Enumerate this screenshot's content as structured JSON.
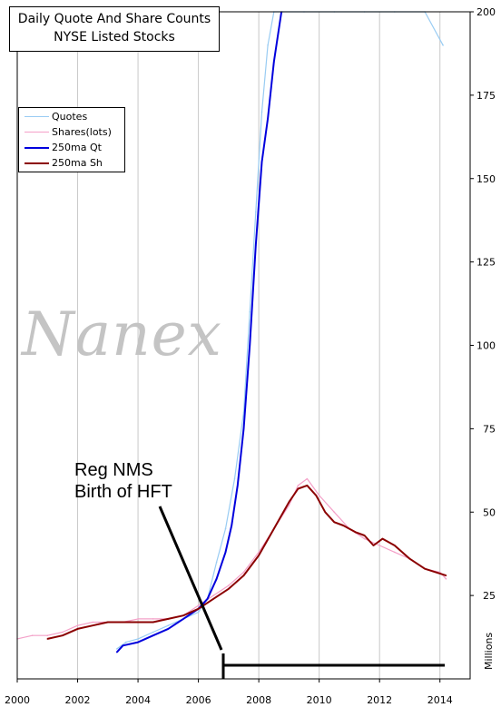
{
  "chart_data": {
    "type": "line",
    "title": "Daily Quote And Share Counts",
    "subtitle": "NYSE Listed Stocks",
    "ylabel": "Millions",
    "xlabel": "",
    "xlim": [
      2000,
      2015.0
    ],
    "ylim": [
      0,
      200
    ],
    "x_ticks": [
      "2000",
      "2002",
      "2004",
      "2006",
      "2008",
      "2010",
      "2012",
      "2014"
    ],
    "y_ticks": [
      "25",
      "50",
      "75",
      "100",
      "125",
      "150",
      "175",
      "200"
    ],
    "grid": "vertical",
    "legend_position": "top-left",
    "series": [
      {
        "name": "Quotes",
        "color": "#99ccf3",
        "x": [
          2003.3,
          2003.6,
          2004.0,
          2004.5,
          2005.0,
          2005.5,
          2006.0,
          2006.3,
          2006.6,
          2006.9,
          2007.2,
          2007.5,
          2007.7,
          2007.9,
          2008.1,
          2008.3,
          2008.5,
          2008.8,
          2009.5,
          2010.5,
          2011.5,
          2012.5,
          2013.5,
          2014.1
        ],
        "values": [
          9,
          11,
          12,
          14,
          16,
          18,
          20,
          24,
          35,
          45,
          60,
          80,
          110,
          140,
          170,
          190,
          200,
          200,
          200,
          200,
          200,
          200,
          200,
          190
        ]
      },
      {
        "name": "Shares(lots)",
        "color": "#f4a0c8",
        "x": [
          2000.0,
          2000.5,
          2001.0,
          2001.5,
          2002.0,
          2002.5,
          2003.0,
          2003.5,
          2004.0,
          2004.5,
          2005.0,
          2005.5,
          2006.0,
          2006.5,
          2007.0,
          2007.5,
          2008.0,
          2008.5,
          2009.0,
          2009.3,
          2009.6,
          2010.0,
          2010.5,
          2011.0,
          2011.5,
          2012.0,
          2012.5,
          2013.0,
          2013.5,
          2014.0,
          2014.2
        ],
        "values": [
          12,
          13,
          13,
          14,
          16,
          17,
          17,
          17,
          18,
          18,
          18,
          19,
          22,
          25,
          28,
          32,
          38,
          45,
          52,
          58,
          60,
          55,
          50,
          45,
          42,
          40,
          38,
          36,
          33,
          32,
          30
        ]
      },
      {
        "name": "250ma Qt",
        "color": "#0000dd",
        "x": [
          2003.3,
          2003.5,
          2004.0,
          2004.5,
          2005.0,
          2005.5,
          2006.0,
          2006.3,
          2006.6,
          2006.9,
          2007.1,
          2007.3,
          2007.5,
          2007.7,
          2007.9,
          2008.1,
          2008.3,
          2008.5,
          2008.75
        ],
        "values": [
          8,
          10,
          11,
          13,
          15,
          18,
          21,
          24,
          30,
          38,
          46,
          58,
          75,
          100,
          130,
          155,
          168,
          185,
          200
        ]
      },
      {
        "name": "250ma Sh",
        "color": "#8b0000",
        "x": [
          2001.0,
          2001.5,
          2002.0,
          2002.5,
          2003.0,
          2003.5,
          2004.0,
          2004.5,
          2005.0,
          2005.5,
          2006.0,
          2006.5,
          2007.0,
          2007.5,
          2008.0,
          2008.5,
          2009.0,
          2009.3,
          2009.6,
          2009.9,
          2010.2,
          2010.5,
          2010.8,
          2011.2,
          2011.5,
          2011.8,
          2012.1,
          2012.5,
          2013.0,
          2013.5,
          2014.2
        ],
        "values": [
          12,
          13,
          15,
          16,
          17,
          17,
          17,
          17,
          18,
          19,
          21,
          24,
          27,
          31,
          37,
          45,
          53,
          57,
          58,
          55,
          50,
          47,
          46,
          44,
          43,
          40,
          42,
          40,
          36,
          33,
          31
        ]
      }
    ]
  },
  "watermark": "Nanex",
  "annotation": {
    "line1": "Reg NMS",
    "line2": "Birth of HFT"
  }
}
